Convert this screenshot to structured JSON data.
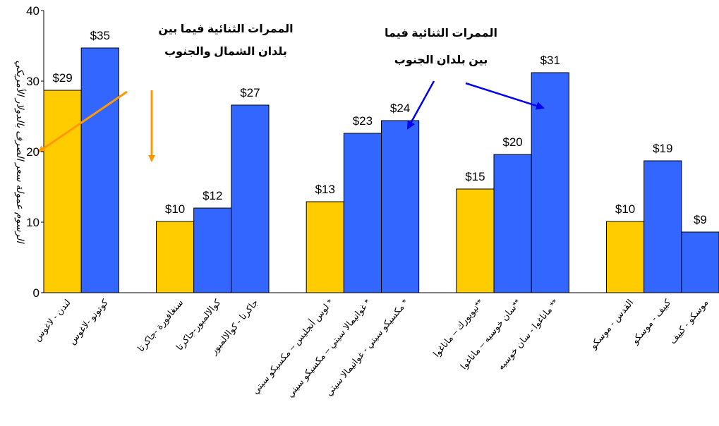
{
  "chart_data": {
    "type": "bar",
    "y_axis_label": "الرسوم عمولة سعر الصرف بالدولار الأمريكي",
    "annotations": [
      "الممرات الثنائية فيما بين",
      "بلدان الشمال والجنوب",
      "الممرات الثنائية فيما",
      "بين بلدان الجنوب"
    ],
    "categories": [
      "لندن - لاغوس",
      "كوتونو -لاغوس",
      null,
      "سنغافورة -جاكرتا",
      "كوالالمبور-جاكرتا",
      "جاكرتا - كوالالمبور",
      null,
      "لوس أنجليس – مكسيكو سيتي *",
      "غواتيمالا سيتي – مكسيكو سيتي *",
      "مكسيكو سيتي - غواتيمالا سيتي *",
      null,
      "نيويورك – ماناغوا**",
      "سان خوسيه – ماناغوا**",
      "ماناغوا - سان خوسيه **",
      null,
      "القدس - موسكو",
      "كييف - موسكو",
      "موسكو - كييف"
    ],
    "values": [
      28.7,
      34.7,
      null,
      10.1,
      12.0,
      26.6,
      null,
      12.9,
      22.6,
      24.4,
      null,
      14.7,
      19.6,
      31.2,
      null,
      10.1,
      18.7,
      8.6
    ],
    "value_labels": [
      "$29",
      "$35",
      null,
      "$10",
      "$12",
      "$27",
      null,
      "$13",
      "$23",
      "$24",
      null,
      "$15",
      "$20",
      "$31",
      null,
      "$10",
      "$19",
      "$9"
    ],
    "colors": [
      "#FFCC00",
      "#3366FF",
      null,
      "#FFCC00",
      "#3366FF",
      "#3366FF",
      null,
      "#FFCC00",
      "#3366FF",
      "#3366FF",
      null,
      "#FFCC00",
      "#3366FF",
      "#3366FF",
      null,
      "#FFCC00",
      "#3366FF",
      "#3366FF"
    ],
    "ylim": [
      0,
      40
    ],
    "yticks": [
      0,
      10,
      20,
      30,
      40
    ],
    "grid": false
  }
}
